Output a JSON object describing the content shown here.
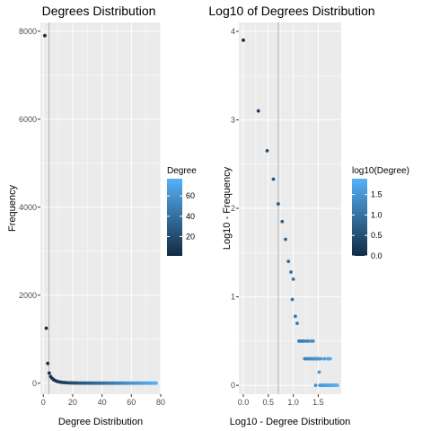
{
  "colors": {
    "panel_bg": "#ebebeb",
    "grid_major": "#ffffff",
    "tick_text": "#4d4d4d",
    "vline": "#b3b3b3",
    "gradient_low": "#132b43",
    "gradient_high": "#56b1f7"
  },
  "chart_data": [
    {
      "type": "scatter",
      "title": "Degrees Distribution",
      "xlabel": "Degree Distribution",
      "ylabel": "Frequency",
      "xlim": [
        -2,
        80
      ],
      "ylim": [
        -250,
        8200
      ],
      "xticks": [
        0,
        20,
        40,
        60,
        80
      ],
      "yticks": [
        0,
        2000,
        4000,
        6000,
        8000
      ],
      "grid": true,
      "vline_x": 3.8,
      "color_scale": {
        "title": "Degree",
        "range": [
          1,
          77
        ],
        "ticks": [
          20,
          40,
          60
        ]
      },
      "points": [
        [
          1,
          7900
        ],
        [
          2,
          1250
        ],
        [
          3,
          450
        ],
        [
          4,
          230
        ],
        [
          5,
          150
        ],
        [
          6,
          110
        ],
        [
          7,
          80
        ],
        [
          8,
          60
        ],
        [
          9,
          45
        ],
        [
          10,
          35
        ],
        [
          11,
          28
        ],
        [
          12,
          22
        ],
        [
          13,
          18
        ],
        [
          14,
          15
        ],
        [
          15,
          12
        ],
        [
          16,
          10
        ],
        [
          17,
          8
        ],
        [
          18,
          7
        ],
        [
          19,
          6
        ],
        [
          20,
          5
        ],
        [
          21,
          5
        ],
        [
          22,
          4
        ],
        [
          23,
          4
        ],
        [
          24,
          3
        ],
        [
          25,
          3
        ],
        [
          26,
          3
        ],
        [
          27,
          2
        ],
        [
          28,
          2
        ],
        [
          29,
          2
        ],
        [
          30,
          2
        ],
        [
          31,
          2
        ],
        [
          32,
          2
        ],
        [
          33,
          1
        ],
        [
          34,
          1
        ],
        [
          35,
          1
        ],
        [
          36,
          1
        ],
        [
          37,
          1
        ],
        [
          38,
          1
        ],
        [
          39,
          1
        ],
        [
          40,
          1
        ],
        [
          41,
          1
        ],
        [
          42,
          1
        ],
        [
          43,
          1
        ],
        [
          44,
          1
        ],
        [
          45,
          1
        ],
        [
          46,
          1
        ],
        [
          47,
          1
        ],
        [
          48,
          1
        ],
        [
          49,
          1
        ],
        [
          50,
          1
        ],
        [
          51,
          1
        ],
        [
          52,
          1
        ],
        [
          53,
          1
        ],
        [
          54,
          1
        ],
        [
          55,
          1
        ],
        [
          56,
          1
        ],
        [
          57,
          1
        ],
        [
          58,
          1
        ],
        [
          59,
          1
        ],
        [
          60,
          1
        ],
        [
          61,
          1
        ],
        [
          62,
          1
        ],
        [
          63,
          1
        ],
        [
          64,
          1
        ],
        [
          65,
          1
        ],
        [
          66,
          1
        ],
        [
          67,
          1
        ],
        [
          68,
          1
        ],
        [
          69,
          1
        ],
        [
          70,
          1
        ],
        [
          71,
          1
        ],
        [
          72,
          1
        ],
        [
          73,
          1
        ],
        [
          74,
          1
        ],
        [
          75,
          1
        ],
        [
          76,
          1
        ],
        [
          77,
          1
        ]
      ]
    },
    {
      "type": "scatter",
      "title": "Log10 of Degrees Distribution",
      "xlabel": "Log10 - Degree Distribution",
      "ylabel": "Log10 - Frequency",
      "xlim": [
        -0.09,
        1.96
      ],
      "ylim": [
        -0.1,
        4.1
      ],
      "xticks": [
        0.0,
        0.5,
        1.0,
        1.5
      ],
      "xtick_labels": [
        "0.0",
        "0.5",
        "1.0",
        "1.5"
      ],
      "yticks": [
        0,
        1,
        2,
        3,
        4
      ],
      "grid": true,
      "vline_x": 0.7,
      "color_scale": {
        "title": "log10(Degree)",
        "range": [
          0,
          1.886
        ],
        "ticks": [
          0.0,
          0.5,
          1.0,
          1.5
        ],
        "tick_labels": [
          "0.0",
          "0.5",
          "1.0",
          "1.5"
        ]
      },
      "points": [
        [
          0.0,
          3.9
        ],
        [
          0.301,
          3.1
        ],
        [
          0.477,
          2.65
        ],
        [
          0.602,
          2.33
        ],
        [
          0.699,
          2.05
        ],
        [
          0.778,
          1.85
        ],
        [
          0.845,
          1.65
        ],
        [
          0.903,
          1.4
        ],
        [
          0.954,
          1.28
        ],
        [
          1.0,
          1.2
        ],
        [
          0.98,
          0.97
        ],
        [
          1.041,
          0.78
        ],
        [
          1.079,
          0.7
        ],
        [
          1.114,
          0.5
        ],
        [
          1.146,
          0.5
        ],
        [
          1.176,
          0.5
        ],
        [
          1.204,
          0.5
        ],
        [
          1.23,
          0.3
        ],
        [
          1.255,
          0.5
        ],
        [
          1.279,
          0.3
        ],
        [
          1.301,
          0.5
        ],
        [
          1.322,
          0.3
        ],
        [
          1.342,
          0.3
        ],
        [
          1.362,
          0.5
        ],
        [
          1.38,
          0.3
        ],
        [
          1.398,
          0.5
        ],
        [
          1.415,
          0.3
        ],
        [
          1.431,
          0.3
        ],
        [
          1.447,
          0.0
        ],
        [
          1.462,
          0.3
        ],
        [
          1.477,
          0.3
        ],
        [
          1.491,
          0.3
        ],
        [
          1.505,
          0.3
        ],
        [
          1.519,
          0.15
        ],
        [
          1.531,
          0.0
        ],
        [
          1.544,
          0.0
        ],
        [
          1.556,
          0.3
        ],
        [
          1.568,
          0.0
        ],
        [
          1.58,
          0.0
        ],
        [
          1.591,
          0.0
        ],
        [
          1.602,
          0.0
        ],
        [
          1.612,
          0.0
        ],
        [
          1.623,
          0.3
        ],
        [
          1.633,
          0.0
        ],
        [
          1.643,
          0.0
        ],
        [
          1.653,
          0.0
        ],
        [
          1.663,
          0.0
        ],
        [
          1.672,
          0.0
        ],
        [
          1.681,
          0.0
        ],
        [
          1.69,
          0.3
        ],
        [
          1.699,
          0.0
        ],
        [
          1.708,
          0.3
        ],
        [
          1.716,
          0.0
        ],
        [
          1.724,
          0.0
        ],
        [
          1.732,
          0.0
        ],
        [
          1.74,
          0.3
        ],
        [
          1.748,
          0.0
        ],
        [
          1.756,
          0.0
        ],
        [
          1.763,
          0.0
        ],
        [
          1.771,
          0.0
        ],
        [
          1.778,
          0.0
        ],
        [
          1.785,
          0.0
        ],
        [
          1.792,
          0.0
        ],
        [
          1.799,
          0.0
        ],
        [
          1.806,
          0.0
        ],
        [
          1.813,
          0.0
        ],
        [
          1.82,
          0.0
        ],
        [
          1.826,
          0.0
        ],
        [
          1.833,
          0.0
        ],
        [
          1.839,
          0.0
        ],
        [
          1.845,
          0.0
        ],
        [
          1.851,
          0.0
        ],
        [
          1.857,
          0.0
        ],
        [
          1.863,
          0.0
        ],
        [
          1.869,
          0.0
        ],
        [
          1.875,
          0.0
        ],
        [
          1.881,
          0.0
        ],
        [
          1.886,
          0.0
        ]
      ]
    }
  ]
}
